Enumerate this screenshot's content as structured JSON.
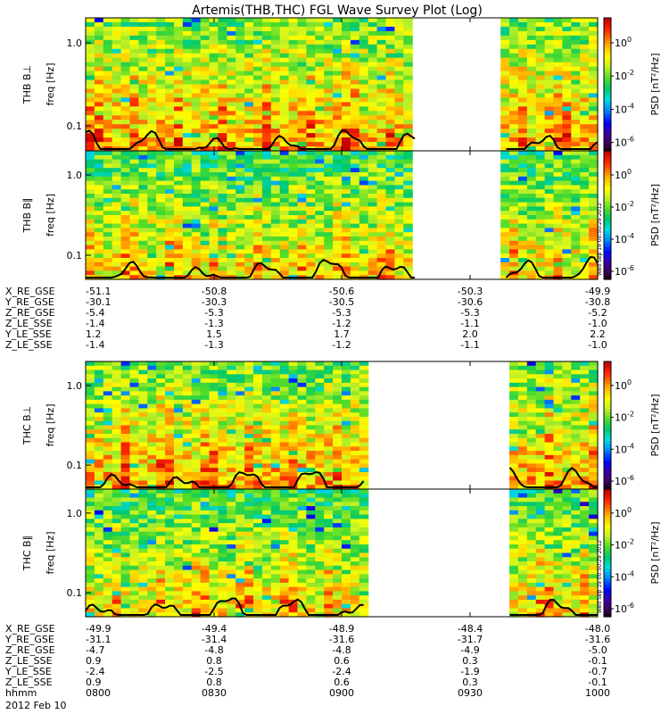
{
  "chart_data": {
    "type": "heatmap",
    "title": "Artemis(THB,THC) FGL Wave Survey Plot (Log)",
    "stamp": "Wed Sep 19 00:50:29 2012",
    "y_axis": {
      "label": "freq [Hz]",
      "scale": "log",
      "range": [
        0.05,
        2.0
      ],
      "ticks": [
        "1.0",
        "0.1"
      ]
    },
    "colorbar": {
      "label": "PSD [nT²/Hz]",
      "scale": "log",
      "range_exp": [
        -6.5,
        1.5
      ],
      "ticks": [
        {
          "base": "10",
          "exp": "0"
        },
        {
          "base": "10",
          "exp": "-2"
        },
        {
          "base": "10",
          "exp": "-4"
        },
        {
          "base": "10",
          "exp": "-6"
        }
      ]
    },
    "panels": [
      {
        "label": "THB B⊥",
        "gaps_frac": [
          [
            0.645,
            0.815
          ]
        ],
        "curve_seed": 1
      },
      {
        "label": "THB B∥",
        "gaps_frac": [
          [
            0.645,
            0.815
          ]
        ],
        "curve_seed": 2
      },
      {
        "label": "THC B⊥",
        "gaps_frac": [
          [
            0.545,
            0.825
          ]
        ],
        "curve_seed": 3
      },
      {
        "label": "THC B∥",
        "gaps_frac": [
          [
            0.545,
            0.825
          ]
        ],
        "curve_seed": 4
      }
    ],
    "ephemeris_thb": {
      "rows": [
        {
          "name": "X_RE_GSE",
          "values": [
            "-51.1",
            "-50.8",
            "-50.6",
            "-50.3",
            "-49.9"
          ]
        },
        {
          "name": "Y_RE_GSE",
          "values": [
            "-30.1",
            "-30.3",
            "-30.5",
            "-30.6",
            "-30.8"
          ]
        },
        {
          "name": "Z_RE_GSE",
          "values": [
            "-5.4",
            "-5.3",
            "-5.3",
            "-5.3",
            "-5.2"
          ]
        },
        {
          "name": "Z_LE_SSE",
          "values": [
            "-1.4",
            "-1.3",
            "-1.2",
            "-1.1",
            "-1.0"
          ]
        },
        {
          "name": "Y_LE_SSE",
          "values": [
            "1.2",
            "1.5",
            "1.7",
            "2.0",
            "2.2"
          ]
        },
        {
          "name": "Z_LE_SSE",
          "values": [
            "-1.4",
            "-1.3",
            "-1.2",
            "-1.1",
            "-1.0"
          ]
        }
      ]
    },
    "ephemeris_thc": {
      "rows": [
        {
          "name": "X_RE_GSE",
          "values": [
            "-49.9",
            "-49.4",
            "-48.9",
            "-48.4",
            "-48.0"
          ]
        },
        {
          "name": "Y_RE_GSE",
          "values": [
            "-31.1",
            "-31.4",
            "-31.6",
            "-31.7",
            "-31.6"
          ]
        },
        {
          "name": "Z_RE_GSE",
          "values": [
            "-4.7",
            "-4.8",
            "-4.8",
            "-4.9",
            "-5.0"
          ]
        },
        {
          "name": "Z_LE_SSE",
          "values": [
            "0.9",
            "0.8",
            "0.6",
            "0.3",
            "-0.1"
          ]
        },
        {
          "name": "Y_LE_SSE",
          "values": [
            "-2.4",
            "-2.5",
            "-2.4",
            "-1.9",
            "-0.7"
          ]
        },
        {
          "name": "Z_LE_SSE",
          "values": [
            "0.9",
            "0.8",
            "0.6",
            "0.3",
            "-0.1"
          ]
        },
        {
          "name": "hhmm",
          "values": [
            "0800",
            "0830",
            "0900",
            "0930",
            "1000"
          ]
        }
      ]
    },
    "date": "2012 Feb 10",
    "colors": {
      "gap": "#ffffff",
      "curve": "#000000"
    }
  }
}
